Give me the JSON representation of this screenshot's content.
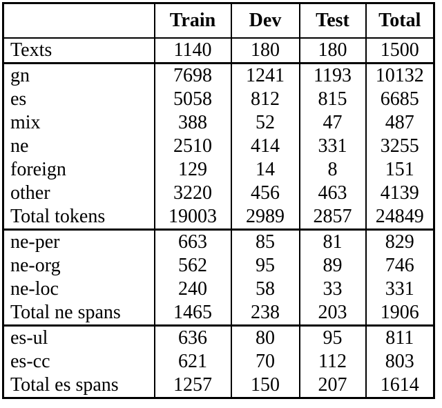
{
  "page": {
    "background": "#ffffff",
    "text_color": "#000000",
    "border_color": "#000000"
  },
  "table": {
    "columns": [
      "",
      "Train",
      "Dev",
      "Test",
      "Total"
    ],
    "sections": [
      {
        "name": "texts",
        "rows": [
          {
            "label": "Texts",
            "values": [
              1140,
              180,
              180,
              1500
            ]
          }
        ]
      },
      {
        "name": "tokens",
        "rows": [
          {
            "label": "gn",
            "values": [
              7698,
              1241,
              1193,
              10132
            ]
          },
          {
            "label": "es",
            "values": [
              5058,
              812,
              815,
              6685
            ]
          },
          {
            "label": "mix",
            "values": [
              388,
              52,
              47,
              487
            ]
          },
          {
            "label": "ne",
            "values": [
              2510,
              414,
              331,
              3255
            ]
          },
          {
            "label": "foreign",
            "values": [
              129,
              14,
              8,
              151
            ]
          },
          {
            "label": "other",
            "values": [
              3220,
              456,
              463,
              4139
            ]
          },
          {
            "label": "Total tokens",
            "values": [
              19003,
              2989,
              2857,
              24849
            ]
          }
        ]
      },
      {
        "name": "ne-spans",
        "rows": [
          {
            "label": "ne-per",
            "values": [
              663,
              85,
              81,
              829
            ]
          },
          {
            "label": "ne-org",
            "values": [
              562,
              95,
              89,
              746
            ]
          },
          {
            "label": "ne-loc",
            "values": [
              240,
              58,
              33,
              331
            ]
          },
          {
            "label": "Total ne spans",
            "values": [
              1465,
              238,
              203,
              1906
            ]
          }
        ]
      },
      {
        "name": "es-spans",
        "rows": [
          {
            "label": "es-ul",
            "values": [
              636,
              80,
              95,
              811
            ]
          },
          {
            "label": "es-cc",
            "values": [
              621,
              70,
              112,
              803
            ]
          },
          {
            "label": "Total es spans",
            "values": [
              1257,
              150,
              207,
              1614
            ]
          }
        ]
      }
    ]
  }
}
